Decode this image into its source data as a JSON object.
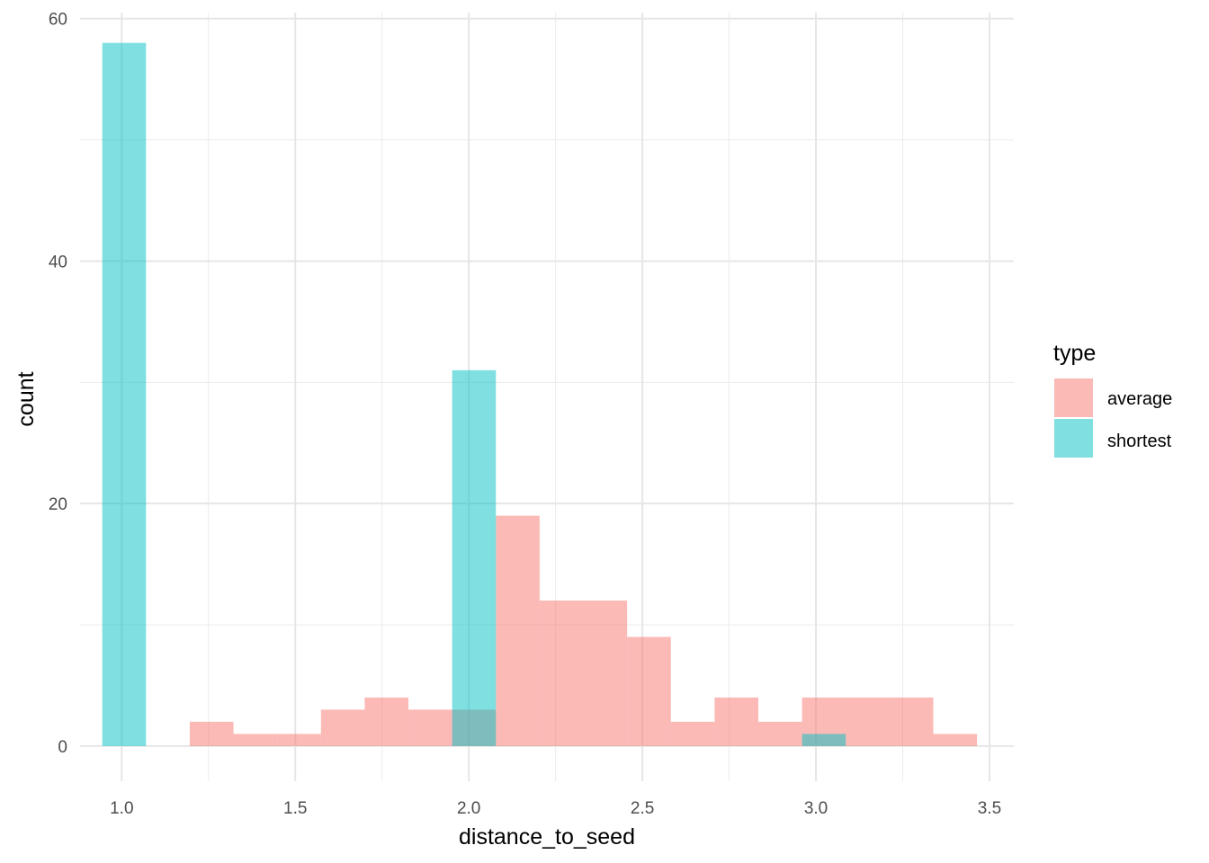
{
  "chart_data": {
    "type": "bar",
    "subtype": "histogram",
    "xlabel": "distance_to_seed",
    "ylabel": "count",
    "xlim": [
      0.88,
      3.57
    ],
    "ylim": [
      -2.9,
      60.5
    ],
    "xticks": [
      1.0,
      1.5,
      2.0,
      2.5,
      3.0,
      3.5
    ],
    "xtick_labels": [
      "1.0",
      "1.5",
      "2.0",
      "2.5",
      "3.0",
      "3.5"
    ],
    "yticks": [
      0,
      20,
      40,
      60
    ],
    "ytick_labels": [
      "0",
      "20",
      "40",
      "60"
    ],
    "grid": true,
    "legend": {
      "title": "type",
      "position": "right",
      "entries": [
        {
          "label": "average",
          "color": "#F8766D"
        },
        {
          "label": "shortest",
          "color": "#00BFC4"
        }
      ]
    },
    "series": [
      {
        "name": "average",
        "color": "#F8766D",
        "opacity": 0.5,
        "bins": [
          {
            "x0": 1.196,
            "x1": 1.322,
            "count": 2
          },
          {
            "x0": 1.322,
            "x1": 1.448,
            "count": 1
          },
          {
            "x0": 1.448,
            "x1": 1.574,
            "count": 1
          },
          {
            "x0": 1.574,
            "x1": 1.7,
            "count": 3
          },
          {
            "x0": 1.7,
            "x1": 1.826,
            "count": 4
          },
          {
            "x0": 1.826,
            "x1": 1.952,
            "count": 3
          },
          {
            "x0": 1.952,
            "x1": 2.078,
            "count": 3
          },
          {
            "x0": 2.078,
            "x1": 2.204,
            "count": 19
          },
          {
            "x0": 2.204,
            "x1": 2.33,
            "count": 12
          },
          {
            "x0": 2.33,
            "x1": 2.456,
            "count": 12
          },
          {
            "x0": 2.456,
            "x1": 2.582,
            "count": 9
          },
          {
            "x0": 2.582,
            "x1": 2.708,
            "count": 2
          },
          {
            "x0": 2.708,
            "x1": 2.834,
            "count": 4
          },
          {
            "x0": 2.834,
            "x1": 2.96,
            "count": 2
          },
          {
            "x0": 2.96,
            "x1": 3.086,
            "count": 4
          },
          {
            "x0": 3.086,
            "x1": 3.212,
            "count": 4
          },
          {
            "x0": 3.212,
            "x1": 3.338,
            "count": 4
          },
          {
            "x0": 3.338,
            "x1": 3.464,
            "count": 1
          }
        ]
      },
      {
        "name": "shortest",
        "color": "#00BFC4",
        "opacity": 0.5,
        "bins": [
          {
            "x0": 0.944,
            "x1": 1.07,
            "count": 58
          },
          {
            "x0": 1.952,
            "x1": 2.078,
            "count": 31
          },
          {
            "x0": 2.96,
            "x1": 3.086,
            "count": 1
          }
        ]
      }
    ]
  }
}
